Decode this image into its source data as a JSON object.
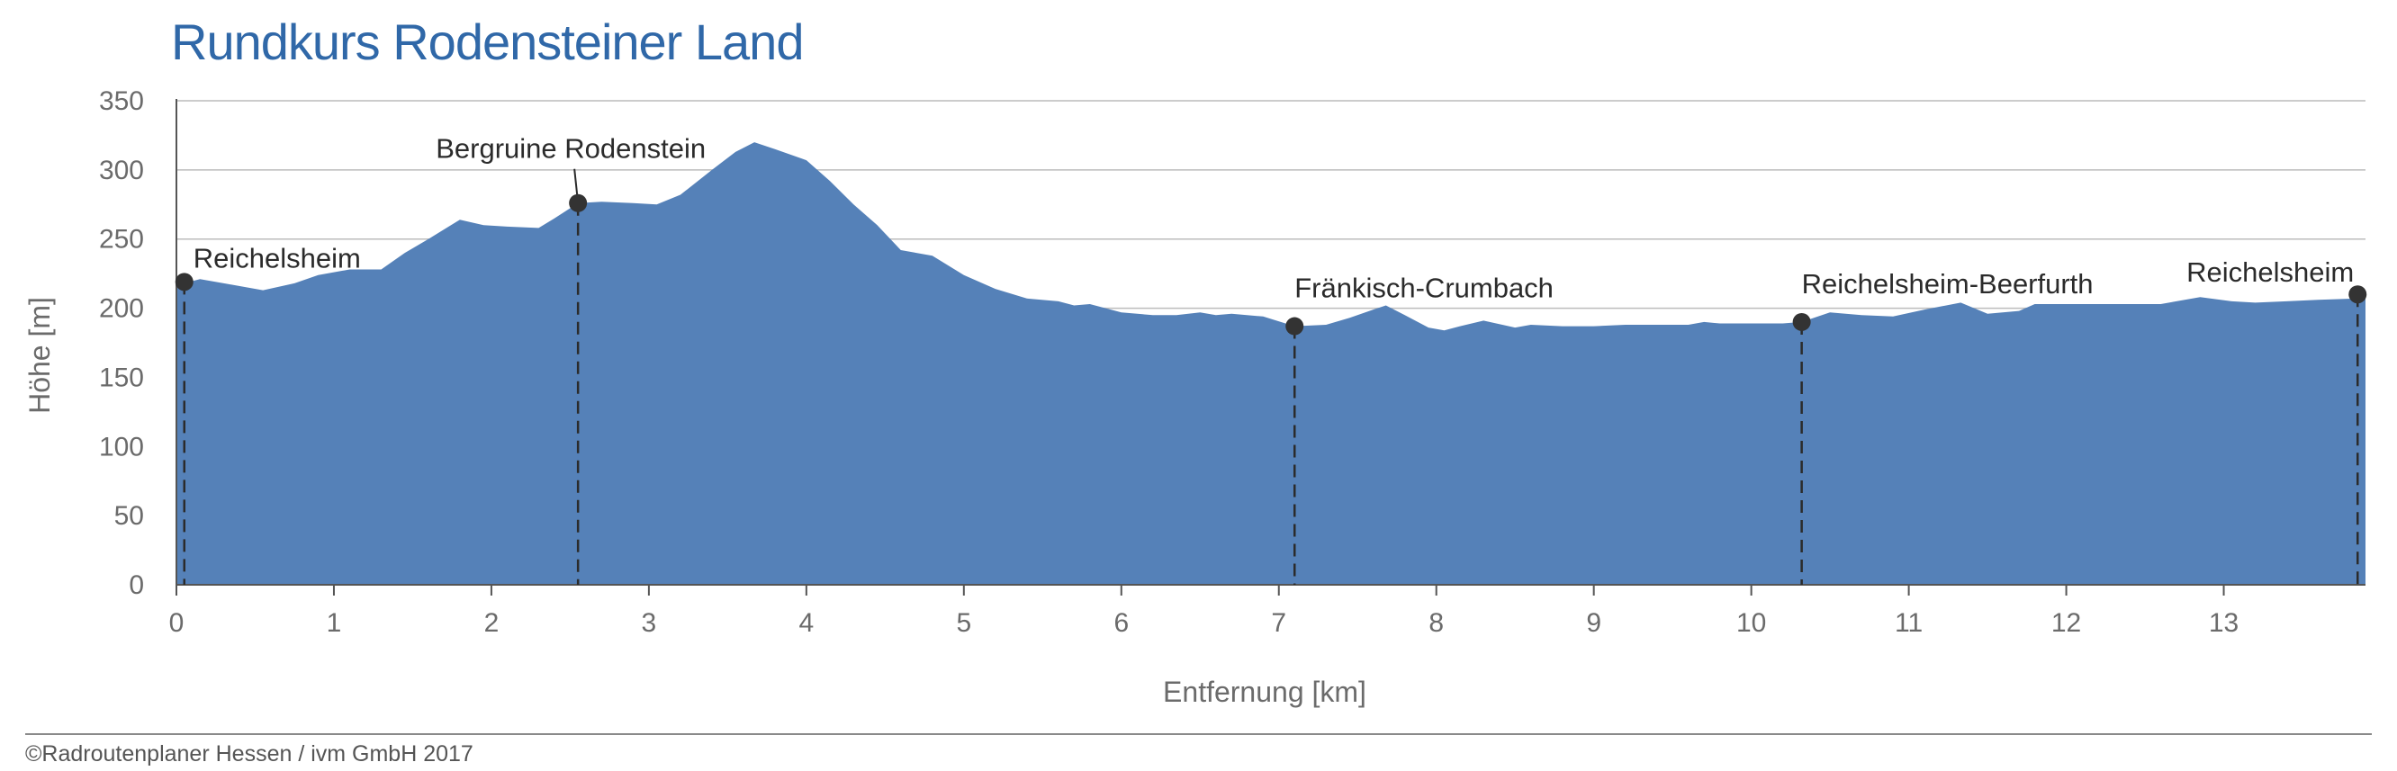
{
  "chart_data": {
    "type": "area",
    "title": "Rundkurs Rodensteiner Land",
    "xlabel": "Entfernung [km]",
    "ylabel": "Höhe [m]",
    "xlim": [
      0,
      13.9
    ],
    "ylim": [
      0,
      350
    ],
    "x_ticks": [
      0,
      1,
      2,
      3,
      4,
      5,
      6,
      7,
      8,
      9,
      10,
      11,
      12,
      13
    ],
    "y_ticks": [
      0,
      50,
      100,
      150,
      200,
      250,
      300,
      350
    ],
    "grid": true,
    "series": [
      {
        "x": [
          0.0,
          0.05,
          0.15,
          0.35,
          0.55,
          0.75,
          0.9,
          1.1,
          1.3,
          1.45,
          1.6,
          1.8,
          1.95,
          2.1,
          2.3,
          2.4,
          2.55,
          2.7,
          2.9,
          3.05,
          3.2,
          3.4,
          3.55,
          3.67,
          3.8,
          4.0,
          4.15,
          4.3,
          4.45,
          4.6,
          4.8,
          5.0,
          5.2,
          5.4,
          5.6,
          5.7,
          5.8,
          6.0,
          6.2,
          6.35,
          6.5,
          6.6,
          6.7,
          6.9,
          7.1,
          7.3,
          7.45,
          7.6,
          7.68,
          7.8,
          7.95,
          8.05,
          8.15,
          8.3,
          8.5,
          8.6,
          8.8,
          9.0,
          9.2,
          9.4,
          9.6,
          9.7,
          9.8,
          10.0,
          10.2,
          10.32,
          10.5,
          10.7,
          10.9,
          11.1,
          11.33,
          11.5,
          11.7,
          11.8,
          12.0,
          12.3,
          12.6,
          12.85,
          13.05,
          13.2,
          13.4,
          13.6,
          13.85,
          13.9
        ],
        "y": [
          215,
          218,
          221,
          217,
          213,
          218,
          224,
          228,
          228,
          240,
          250,
          264,
          260,
          259,
          258,
          265,
          276,
          277,
          276,
          275,
          282,
          300,
          313,
          320,
          315,
          307,
          292,
          275,
          260,
          242,
          238,
          224,
          214,
          207,
          205,
          202,
          203,
          197,
          195,
          195,
          197,
          195,
          196,
          194,
          187,
          188,
          193,
          199,
          202,
          195,
          186,
          184,
          187,
          191,
          186,
          188,
          187,
          187,
          188,
          188,
          188,
          190,
          189,
          189,
          189,
          190,
          197,
          195,
          194,
          199,
          204,
          196,
          198,
          203,
          203,
          203,
          203,
          208,
          205,
          204,
          205,
          206,
          207,
          209
        ]
      }
    ],
    "colors": {
      "area": "#5581b8",
      "grid": "#bcbcbc",
      "marker": "#333333"
    },
    "annotations": [
      {
        "label": "Reichelsheim",
        "x": 0.05,
        "y": 219
      },
      {
        "label": "Bergruine Rodenstein",
        "x": 2.55,
        "y": 276
      },
      {
        "label": "Fränkisch-Crumbach",
        "x": 7.1,
        "y": 187
      },
      {
        "label": "Reichelsheim-Beerfurth",
        "x": 10.32,
        "y": 190
      },
      {
        "label": "Reichelsheim",
        "x": 13.85,
        "y": 210
      }
    ]
  },
  "footer": {
    "credit": "©Radroutenplaner Hessen / ivm GmbH 2017"
  }
}
